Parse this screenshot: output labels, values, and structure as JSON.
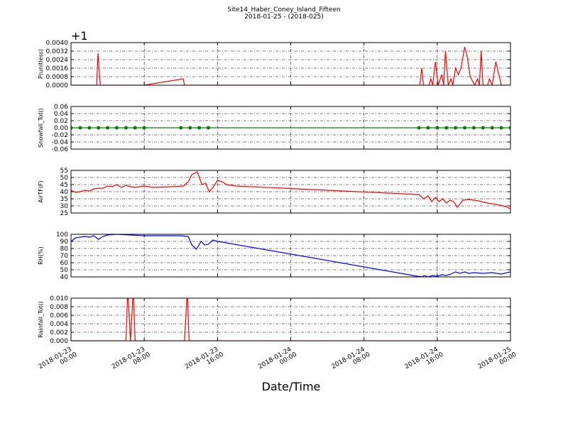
{
  "title": "Site14_Haber_Coney_Island_Fifteen",
  "subtitle": "2018-01-25 - (2018-025)",
  "xlabel": "Date/Time",
  "xlim": [
    "2018-01-23 00:00",
    "2018-01-25 00:00"
  ],
  "xticks": [
    "2018-01-23 00:00",
    "2018-01-23 08:00",
    "2018-01-23 16:00",
    "2018-01-24 00:00",
    "2018-01-24 08:00",
    "2018-01-24 16:00",
    "2018-01-25 00:00"
  ],
  "chart_data": [
    {
      "type": "line",
      "ylabel": "P(unitless)",
      "offset_text": "+1",
      "grid": true,
      "ylim": [
        0,
        0.004
      ],
      "yticks": [
        {
          "value": 0,
          "label": "0.0000"
        },
        {
          "value": 0.0008,
          "label": "0.0008"
        },
        {
          "value": 0.0016,
          "label": "0.0016"
        },
        {
          "value": 0.0024,
          "label": "0.0024"
        },
        {
          "value": 0.0032,
          "label": "0.0032"
        },
        {
          "value": 0.004,
          "label": "0.0040"
        }
      ],
      "x": [
        "2018-01-23 00:00",
        "2018-01-23 02:48",
        "2018-01-23 02:57",
        "2018-01-23 03:12",
        "2018-01-23 08:00",
        "2018-01-23 12:15",
        "2018-01-23 12:24",
        "2018-01-24 14:06",
        "2018-01-24 14:18",
        "2018-01-24 14:30",
        "2018-01-24 15:06",
        "2018-01-24 15:18",
        "2018-01-24 15:30",
        "2018-01-24 15:48",
        "2018-01-24 16:06",
        "2018-01-24 16:30",
        "2018-01-24 16:42",
        "2018-01-24 16:54",
        "2018-01-24 17:12",
        "2018-01-24 17:30",
        "2018-01-24 17:42",
        "2018-01-24 18:00",
        "2018-01-24 18:18",
        "2018-01-24 18:36",
        "2018-01-24 19:00",
        "2018-01-24 19:18",
        "2018-01-24 19:36",
        "2018-01-24 20:06",
        "2018-01-24 20:24",
        "2018-01-24 20:36",
        "2018-01-24 20:48",
        "2018-01-24 21:00",
        "2018-01-24 21:30",
        "2018-01-24 21:42",
        "2018-01-24 22:00",
        "2018-01-24 22:24",
        "2018-01-24 23:00",
        "2018-01-25 00:00"
      ],
      "series": [
        {
          "color": "#ff0000",
          "marker": false,
          "values": [
            0,
            0,
            0.003,
            0,
            0,
            0.0006,
            0,
            0,
            0.0016,
            0,
            0,
            0.0006,
            0,
            0.0022,
            0,
            0.001,
            0,
            0.0032,
            0,
            0.0006,
            0,
            0.0016,
            0.001,
            0.0016,
            0.0036,
            0.0026,
            0.0008,
            0,
            0.0006,
            0,
            0.0032,
            0,
            0,
            0.0006,
            0,
            0.0022,
            0,
            0
          ]
        }
      ]
    },
    {
      "type": "line",
      "ylabel": "Snowfall_Tot()",
      "grid": true,
      "ylim": [
        -0.06,
        0.06
      ],
      "yticks": [
        {
          "value": -0.06,
          "label": "-0.06"
        },
        {
          "value": -0.04,
          "label": "-0.04"
        },
        {
          "value": -0.02,
          "label": "-0.02"
        },
        {
          "value": 0,
          "label": "0.00"
        },
        {
          "value": 0.02,
          "label": "0.02"
        },
        {
          "value": 0.04,
          "label": "0.04"
        },
        {
          "value": 0.06,
          "label": "0.06"
        }
      ],
      "x": [
        "2018-01-23 00:00",
        "2018-01-23 01:00",
        "2018-01-23 02:00",
        "2018-01-23 03:00",
        "2018-01-23 04:00",
        "2018-01-23 05:00",
        "2018-01-23 06:00",
        "2018-01-23 07:00",
        "2018-01-23 08:00",
        "2018-01-23 12:00",
        "2018-01-23 13:00",
        "2018-01-23 14:00",
        "2018-01-23 15:00",
        "2018-01-24 14:00",
        "2018-01-24 15:00",
        "2018-01-24 16:00",
        "2018-01-24 17:00",
        "2018-01-24 18:00",
        "2018-01-24 19:00",
        "2018-01-24 20:00",
        "2018-01-24 21:00",
        "2018-01-24 22:00",
        "2018-01-24 23:00",
        "2018-01-25 00:00"
      ],
      "series": [
        {
          "color": "#008000",
          "marker": true,
          "values": [
            0,
            0,
            0,
            0,
            0,
            0,
            0,
            0,
            0,
            0,
            0,
            0,
            0,
            0,
            0,
            0,
            0,
            0,
            0,
            0,
            0,
            0,
            0,
            0
          ]
        }
      ]
    },
    {
      "type": "line",
      "ylabel": "AirTF(F)",
      "grid": true,
      "ylim": [
        25,
        55
      ],
      "yticks": [
        25,
        30,
        35,
        40,
        45,
        50,
        55
      ],
      "x": [
        "2018-01-23 00:00",
        "2018-01-23 00:30",
        "2018-01-23 01:00",
        "2018-01-23 01:30",
        "2018-01-23 02:00",
        "2018-01-23 02:30",
        "2018-01-23 03:30",
        "2018-01-23 04:00",
        "2018-01-23 04:30",
        "2018-01-23 05:00",
        "2018-01-23 05:30",
        "2018-01-23 06:00",
        "2018-01-23 06:30",
        "2018-01-23 07:00",
        "2018-01-23 08:00",
        "2018-01-23 09:00",
        "2018-01-23 11:00",
        "2018-01-23 12:18",
        "2018-01-23 12:48",
        "2018-01-23 13:12",
        "2018-01-23 13:48",
        "2018-01-23 14:18",
        "2018-01-23 14:42",
        "2018-01-23 15:06",
        "2018-01-23 15:30",
        "2018-01-23 16:00",
        "2018-01-23 16:30",
        "2018-01-23 17:00",
        "2018-01-23 18:00",
        "2018-01-24 14:00",
        "2018-01-24 14:30",
        "2018-01-24 15:00",
        "2018-01-24 15:24",
        "2018-01-24 15:48",
        "2018-01-24 16:12",
        "2018-01-24 16:36",
        "2018-01-24 17:00",
        "2018-01-24 17:24",
        "2018-01-24 17:48",
        "2018-01-24 18:12",
        "2018-01-24 18:48",
        "2018-01-24 19:30",
        "2018-01-24 20:30",
        "2018-01-24 21:30",
        "2018-01-24 22:30",
        "2018-01-24 23:30",
        "2018-01-25 00:00"
      ],
      "series": [
        {
          "color": "#ff0000",
          "marker": false,
          "values": [
            41,
            39.5,
            40,
            41,
            40.5,
            42,
            42.5,
            44,
            43.5,
            45,
            43,
            44.5,
            43.5,
            43,
            44,
            43,
            43.5,
            44,
            47,
            52,
            54,
            45,
            46,
            40,
            43,
            48,
            47,
            45,
            44,
            38,
            35,
            37,
            33,
            36,
            33,
            35,
            32,
            34,
            33,
            29,
            34,
            34.5,
            33.5,
            32,
            31,
            29.5,
            28
          ]
        }
      ]
    },
    {
      "type": "line",
      "ylabel": "RH(%)",
      "grid": true,
      "ylim": [
        40,
        100
      ],
      "yticks": [
        40,
        50,
        60,
        70,
        80,
        90,
        100
      ],
      "x": [
        "2018-01-23 00:00",
        "2018-01-23 00:30",
        "2018-01-23 01:00",
        "2018-01-23 01:30",
        "2018-01-23 02:00",
        "2018-01-23 02:30",
        "2018-01-23 03:00",
        "2018-01-23 03:30",
        "2018-01-23 04:00",
        "2018-01-23 05:00",
        "2018-01-23 08:00",
        "2018-01-23 12:00",
        "2018-01-23 12:48",
        "2018-01-23 13:12",
        "2018-01-23 13:42",
        "2018-01-23 14:12",
        "2018-01-23 14:36",
        "2018-01-23 15:00",
        "2018-01-23 15:30",
        "2018-01-23 16:00",
        "2018-01-23 16:30",
        "2018-01-24 13:48",
        "2018-01-24 14:18",
        "2018-01-24 14:36",
        "2018-01-24 15:00",
        "2018-01-24 15:30",
        "2018-01-24 16:00",
        "2018-01-24 16:30",
        "2018-01-24 17:00",
        "2018-01-24 17:30",
        "2018-01-24 18:00",
        "2018-01-24 18:30",
        "2018-01-24 19:00",
        "2018-01-24 19:30",
        "2018-01-24 20:00",
        "2018-01-24 21:00",
        "2018-01-24 22:00",
        "2018-01-24 23:00",
        "2018-01-25 00:00"
      ],
      "series": [
        {
          "color": "#0000ff",
          "marker": false,
          "values": [
            90,
            95,
            96,
            97,
            96,
            98,
            93,
            97,
            99,
            100,
            98,
            98,
            97,
            85,
            79,
            90,
            85,
            86,
            92,
            90,
            89,
            41,
            40,
            42,
            40,
            42,
            41,
            43,
            42,
            44,
            47,
            45,
            47,
            45,
            46,
            45,
            46,
            44,
            47
          ]
        }
      ]
    },
    {
      "type": "line",
      "ylabel": "Rainfall_Tot()",
      "grid": true,
      "ylim": [
        0,
        0.01
      ],
      "yticks": [
        {
          "value": 0,
          "label": "0.000"
        },
        {
          "value": 0.002,
          "label": "0.002"
        },
        {
          "value": 0.004,
          "label": "0.004"
        },
        {
          "value": 0.006,
          "label": "0.006"
        },
        {
          "value": 0.008,
          "label": "0.008"
        },
        {
          "value": 0.01,
          "label": "0.010"
        }
      ],
      "x": [
        "2018-01-23 00:00",
        "2018-01-23 06:00",
        "2018-01-23 06:12",
        "2018-01-23 06:30",
        "2018-01-23 06:48",
        "2018-01-23 07:00",
        "2018-01-23 12:24",
        "2018-01-23 12:42",
        "2018-01-23 12:54",
        "2018-01-25 00:00"
      ],
      "series": [
        {
          "color": "#ff0000",
          "marker": false,
          "values": [
            0,
            0,
            0.012,
            0,
            0.012,
            0,
            0,
            0.012,
            0,
            0
          ]
        }
      ]
    }
  ]
}
